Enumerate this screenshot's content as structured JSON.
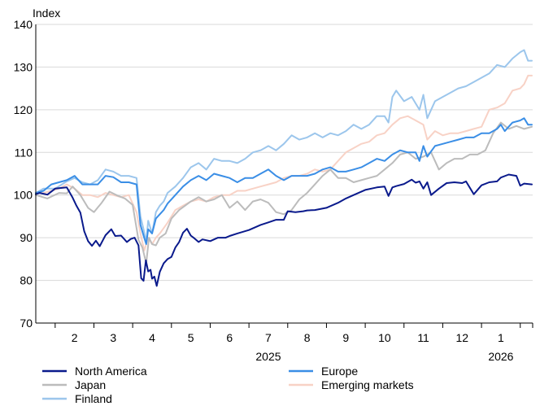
{
  "chart_data": {
    "type": "line",
    "title": "",
    "ylabel": "Index",
    "xlabel": "",
    "ylim": [
      70,
      140
    ],
    "yticks": [
      70,
      80,
      90,
      100,
      110,
      120,
      130,
      140
    ],
    "grid": true,
    "xlim": [
      1,
      13.82
    ],
    "month_labels": [
      {
        "label": "2",
        "x": 2
      },
      {
        "label": "3",
        "x": 3
      },
      {
        "label": "4",
        "x": 4
      },
      {
        "label": "5",
        "x": 5
      },
      {
        "label": "6",
        "x": 6
      },
      {
        "label": "7",
        "x": 7
      },
      {
        "label": "8",
        "x": 8
      },
      {
        "label": "9",
        "x": 9
      },
      {
        "label": "10",
        "x": 10
      },
      {
        "label": "11",
        "x": 11
      },
      {
        "label": "12",
        "x": 12
      },
      {
        "label": "1",
        "x": 13
      }
    ],
    "year_labels": [
      {
        "label": "2025",
        "x": 7
      },
      {
        "label": "2026",
        "x": 13
      }
    ],
    "legend_position": "bottom",
    "series": [
      {
        "name": "North America",
        "color": "#0a1a8c",
        "x": [
          1.0,
          1.1,
          1.3,
          1.5,
          1.8,
          1.95,
          2.05,
          2.15,
          2.25,
          2.35,
          2.45,
          2.55,
          2.65,
          2.8,
          2.95,
          3.05,
          3.2,
          3.35,
          3.45,
          3.55,
          3.65,
          3.72,
          3.78,
          3.84,
          3.9,
          3.96,
          4.0,
          4.06,
          4.12,
          4.2,
          4.3,
          4.4,
          4.5,
          4.6,
          4.7,
          4.8,
          4.9,
          5.0,
          5.1,
          5.2,
          5.3,
          5.5,
          5.7,
          5.9,
          6.0,
          6.2,
          6.5,
          6.8,
          7.0,
          7.2,
          7.4,
          7.5,
          7.7,
          7.9,
          8.0,
          8.2,
          8.5,
          8.8,
          9.0,
          9.2,
          9.5,
          9.8,
          10.0,
          10.1,
          10.2,
          10.3,
          10.5,
          10.7,
          10.8,
          10.9,
          11.0,
          11.1,
          11.2,
          11.4,
          11.6,
          11.8,
          12.0,
          12.1,
          12.3,
          12.5,
          12.7,
          12.9,
          13.0,
          13.2,
          13.4,
          13.5,
          13.6,
          13.8
        ],
        "values": [
          100.2,
          100.5,
          100.1,
          101.5,
          101.8,
          99.4,
          97.5,
          95.9,
          91.5,
          89.2,
          88.1,
          89.3,
          88.0,
          90.6,
          92.0,
          90.4,
          90.5,
          89.0,
          89.7,
          90.0,
          88.2,
          80.5,
          79.9,
          84.7,
          82.1,
          82.5,
          80.4,
          80.9,
          78.7,
          82.0,
          84.0,
          85.0,
          85.5,
          87.7,
          89.0,
          91.2,
          92.1,
          90.5,
          89.8,
          89.0,
          89.6,
          89.2,
          90.0,
          90.0,
          90.4,
          91.0,
          91.8,
          93.0,
          93.6,
          94.2,
          94.2,
          96.2,
          96.0,
          96.2,
          96.4,
          96.5,
          97.0,
          98.2,
          99.2,
          100.0,
          101.2,
          101.8,
          102.0,
          99.8,
          101.8,
          102.1,
          102.6,
          103.6,
          102.9,
          103.2,
          101.5,
          103.0,
          100.0,
          101.5,
          102.8,
          103.0,
          102.8,
          103.2,
          100.2,
          102.3,
          103.0,
          103.2,
          104.1,
          104.8,
          104.5,
          102.2,
          102.7,
          102.5
        ]
      },
      {
        "name": "Japan",
        "color": "#bcbcbc",
        "x": [
          1.0,
          1.3,
          1.6,
          1.8,
          1.95,
          2.15,
          2.35,
          2.5,
          2.7,
          2.9,
          3.1,
          3.3,
          3.5,
          3.65,
          3.75,
          3.85,
          3.92,
          4.0,
          4.1,
          4.2,
          4.35,
          4.5,
          4.7,
          5.0,
          5.2,
          5.4,
          5.6,
          5.8,
          6.0,
          6.2,
          6.4,
          6.6,
          6.8,
          7.0,
          7.2,
          7.4,
          7.6,
          7.8,
          8.0,
          8.2,
          8.4,
          8.6,
          8.8,
          9.0,
          9.2,
          9.4,
          9.6,
          9.8,
          10.0,
          10.2,
          10.4,
          10.6,
          10.8,
          11.0,
          11.2,
          11.4,
          11.6,
          11.8,
          12.0,
          12.2,
          12.4,
          12.6,
          12.8,
          13.0,
          13.2,
          13.4,
          13.6,
          13.8
        ],
        "values": [
          100.0,
          99.2,
          100.5,
          100.4,
          102.0,
          100.0,
          97.0,
          96.0,
          98.2,
          100.8,
          99.9,
          99.2,
          97.7,
          89.5,
          87.7,
          84.0,
          90.0,
          88.5,
          88.2,
          90.0,
          91.0,
          94.5,
          96.5,
          98.5,
          99.5,
          98.5,
          99.0,
          100.0,
          97.0,
          98.5,
          96.5,
          98.5,
          99.0,
          98.2,
          96.0,
          95.5,
          96.5,
          99.0,
          100.5,
          102.5,
          104.5,
          106.0,
          104.0,
          104.0,
          103.0,
          103.5,
          104.0,
          104.5,
          106.0,
          107.5,
          109.5,
          110.0,
          108.5,
          109.0,
          110.0,
          106.0,
          107.5,
          108.5,
          108.5,
          109.5,
          109.5,
          110.5,
          114.5,
          117.0,
          115.5,
          116.2,
          115.5,
          116.0
        ]
      },
      {
        "name": "Finland",
        "color": "#9cc6ec",
        "x": [
          1.0,
          1.2,
          1.5,
          1.8,
          2.0,
          2.2,
          2.4,
          2.6,
          2.8,
          3.0,
          3.2,
          3.4,
          3.6,
          3.7,
          3.78,
          3.85,
          3.9,
          4.0,
          4.1,
          4.2,
          4.3,
          4.4,
          4.6,
          4.8,
          5.0,
          5.2,
          5.4,
          5.6,
          5.8,
          6.0,
          6.2,
          6.4,
          6.6,
          6.8,
          7.0,
          7.2,
          7.4,
          7.6,
          7.8,
          8.0,
          8.2,
          8.4,
          8.6,
          8.8,
          9.0,
          9.2,
          9.4,
          9.6,
          9.8,
          10.0,
          10.1,
          10.2,
          10.3,
          10.5,
          10.7,
          10.9,
          11.0,
          11.1,
          11.3,
          11.5,
          11.7,
          11.9,
          12.1,
          12.3,
          12.5,
          12.7,
          12.9,
          13.1,
          13.3,
          13.5,
          13.6,
          13.7,
          13.8
        ],
        "values": [
          100.5,
          101.5,
          101.5,
          103.2,
          104.0,
          103.0,
          102.5,
          103.5,
          106.0,
          105.5,
          104.5,
          104.5,
          104.0,
          95.0,
          92.0,
          89.0,
          94.0,
          91.0,
          96.0,
          97.5,
          98.5,
          100.5,
          102.0,
          104.0,
          106.5,
          107.5,
          106.0,
          108.5,
          108.0,
          108.0,
          107.5,
          108.5,
          110.0,
          110.5,
          111.5,
          110.5,
          112.0,
          114.0,
          113.0,
          113.5,
          114.5,
          113.5,
          114.5,
          114.0,
          115.0,
          116.5,
          115.5,
          116.5,
          118.5,
          118.5,
          117.0,
          123.0,
          124.5,
          122.0,
          123.0,
          120.0,
          123.5,
          118.0,
          122.0,
          123.0,
          124.0,
          125.0,
          125.5,
          126.5,
          127.5,
          128.5,
          130.5,
          130.0,
          132.0,
          133.5,
          134.0,
          131.5,
          131.5
        ]
      },
      {
        "name": "Europe",
        "color": "#3a8ee6",
        "x": [
          1.0,
          1.2,
          1.4,
          1.6,
          1.8,
          2.0,
          2.2,
          2.4,
          2.6,
          2.8,
          3.0,
          3.2,
          3.4,
          3.6,
          3.7,
          3.78,
          3.85,
          3.9,
          4.0,
          4.1,
          4.2,
          4.3,
          4.4,
          4.6,
          4.8,
          5.0,
          5.2,
          5.4,
          5.6,
          5.8,
          6.0,
          6.2,
          6.4,
          6.6,
          6.8,
          7.0,
          7.2,
          7.4,
          7.6,
          7.8,
          8.0,
          8.2,
          8.4,
          8.6,
          8.8,
          9.0,
          9.2,
          9.4,
          9.6,
          9.8,
          10.0,
          10.2,
          10.4,
          10.6,
          10.8,
          10.9,
          11.0,
          11.1,
          11.3,
          11.5,
          11.7,
          11.9,
          12.1,
          12.3,
          12.5,
          12.7,
          12.9,
          13.0,
          13.1,
          13.3,
          13.5,
          13.6,
          13.7,
          13.8
        ],
        "values": [
          100.5,
          101.0,
          102.5,
          103.0,
          103.5,
          104.5,
          102.5,
          102.5,
          102.5,
          104.5,
          104.2,
          103.0,
          103.0,
          102.5,
          93.0,
          90.5,
          88.5,
          92.0,
          91.0,
          94.5,
          95.5,
          96.5,
          98.0,
          100.0,
          102.0,
          103.5,
          104.5,
          103.5,
          105.0,
          104.5,
          104.0,
          103.0,
          104.0,
          104.0,
          105.0,
          106.0,
          104.5,
          103.5,
          104.5,
          104.5,
          104.5,
          105.0,
          106.0,
          106.5,
          105.5,
          105.5,
          106.0,
          106.5,
          107.5,
          108.5,
          108.0,
          109.5,
          110.5,
          110.0,
          110.0,
          108.0,
          111.5,
          109.0,
          111.5,
          112.0,
          112.5,
          113.0,
          113.5,
          113.5,
          114.5,
          114.5,
          115.5,
          116.5,
          115.0,
          117.0,
          117.5,
          118.0,
          116.5,
          116.5
        ]
      },
      {
        "name": "Emerging markets",
        "color": "#f8d2c6",
        "x": [
          1.0,
          1.2,
          1.4,
          1.6,
          1.8,
          2.0,
          2.2,
          2.4,
          2.6,
          2.8,
          3.0,
          3.2,
          3.4,
          3.6,
          3.7,
          3.8,
          3.9,
          4.0,
          4.1,
          4.2,
          4.4,
          4.6,
          4.8,
          5.0,
          5.2,
          5.4,
          5.6,
          5.8,
          6.0,
          6.2,
          6.4,
          6.6,
          6.8,
          7.0,
          7.2,
          7.4,
          7.6,
          7.8,
          8.0,
          8.2,
          8.4,
          8.6,
          8.8,
          9.0,
          9.2,
          9.4,
          9.6,
          9.8,
          10.0,
          10.2,
          10.4,
          10.6,
          10.8,
          11.0,
          11.1,
          11.3,
          11.5,
          11.7,
          11.9,
          12.1,
          12.3,
          12.5,
          12.7,
          12.9,
          13.1,
          13.3,
          13.5,
          13.6,
          13.7,
          13.8
        ],
        "values": [
          100.5,
          100.5,
          101.0,
          101.5,
          102.5,
          101.5,
          100.0,
          100.0,
          99.5,
          100.5,
          100.0,
          99.5,
          100.0,
          96.0,
          91.0,
          87.0,
          90.0,
          88.5,
          90.0,
          91.0,
          93.5,
          96.5,
          97.5,
          98.5,
          99.0,
          98.5,
          99.5,
          100.0,
          100.0,
          101.0,
          101.0,
          101.5,
          102.0,
          102.5,
          103.0,
          104.0,
          104.5,
          104.5,
          105.0,
          106.0,
          105.5,
          106.0,
          108.0,
          110.0,
          111.0,
          112.0,
          112.5,
          114.0,
          114.5,
          116.5,
          118.0,
          118.5,
          117.5,
          116.5,
          113.0,
          115.0,
          114.0,
          114.5,
          114.5,
          115.0,
          115.5,
          116.0,
          120.0,
          120.5,
          121.5,
          124.5,
          125.0,
          126.0,
          128.0,
          128.0
        ]
      }
    ]
  }
}
